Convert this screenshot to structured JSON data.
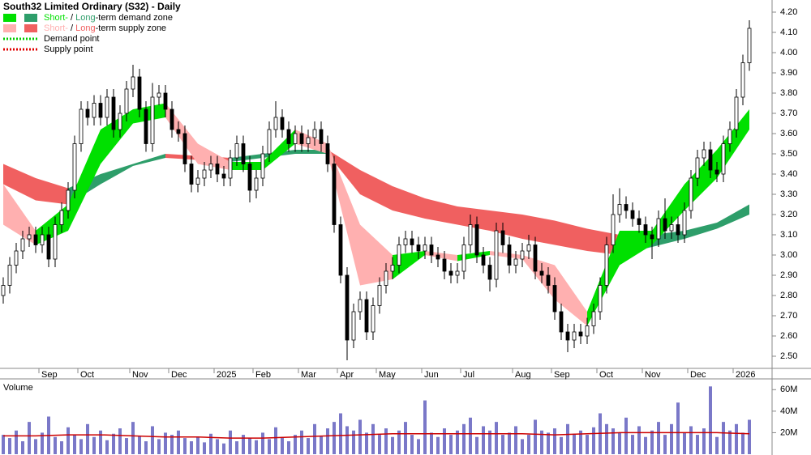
{
  "chart_data": {
    "type": "candlestick",
    "title": "South32 Limited Ordinary (S32) - Daily",
    "legend": [
      {
        "parts": [
          "Short-",
          " / ",
          "Long",
          "-term demand zone"
        ],
        "colors": [
          "#00e000",
          "#2e9e6a"
        ]
      },
      {
        "parts": [
          "Short-",
          " / ",
          "Long",
          "-term supply zone"
        ],
        "colors": [
          "#ffb0b0",
          "#f06060"
        ]
      },
      {
        "parts": [
          "Demand point"
        ],
        "colors": [
          "#00cc00"
        ]
      },
      {
        "parts": [
          "Supply point"
        ],
        "colors": [
          "#e00000"
        ]
      }
    ],
    "categories": [
      null,
      null,
      null,
      null,
      null,
      null,
      "Sep",
      null,
      null,
      null,
      null,
      null,
      "Oct",
      null,
      null,
      null,
      null,
      null,
      null,
      null,
      "Nov",
      null,
      null,
      null,
      null,
      null,
      "Dec",
      null,
      null,
      null,
      null,
      null,
      null,
      "2025",
      null,
      null,
      null,
      null,
      null,
      "Feb",
      null,
      null,
      null,
      null,
      null,
      null,
      "Mar",
      null,
      null,
      null,
      null,
      null,
      "Apr",
      null,
      null,
      null,
      null,
      null,
      "May",
      null,
      null,
      null,
      null,
      null,
      null,
      "Jun",
      null,
      null,
      null,
      null,
      null,
      "Jul",
      null,
      null,
      null,
      null,
      null,
      null,
      null,
      "Aug",
      null,
      null,
      null,
      null,
      null,
      "Sep",
      null,
      null,
      null,
      null,
      null,
      null,
      "Oct",
      null,
      null,
      null,
      null,
      null,
      null,
      "Nov",
      null,
      null,
      null,
      null,
      null,
      null,
      "Dec",
      null,
      null,
      null,
      null,
      null,
      null,
      "2026",
      null,
      null
    ],
    "open": [
      2.8,
      2.85,
      2.95,
      3.02,
      3.08,
      3.1,
      3.05,
      3.1,
      2.98,
      3.15,
      3.22,
      3.32,
      3.55,
      3.72,
      3.68,
      3.75,
      3.68,
      3.78,
      3.62,
      3.7,
      3.82,
      3.88,
      3.72,
      3.55,
      3.78,
      3.8,
      3.72,
      3.62,
      3.6,
      3.45,
      3.35,
      3.38,
      3.42,
      3.45,
      3.4,
      3.38,
      3.48,
      3.55,
      3.45,
      3.32,
      3.38,
      3.5,
      3.62,
      3.68,
      3.62,
      3.55,
      3.6,
      3.55,
      3.58,
      3.62,
      3.55,
      3.45,
      3.15,
      2.9,
      2.58,
      2.72,
      2.78,
      2.62,
      2.75,
      2.85,
      2.92,
      2.95,
      3.05,
      3.08,
      3.05,
      3.02,
      3.05,
      3.0,
      2.98,
      2.92,
      2.9,
      2.92,
      3.05,
      3.15,
      3.0,
      2.95,
      2.88,
      3.12,
      3.05,
      2.95,
      2.98,
      3.02,
      3.05,
      2.92,
      2.9,
      2.85,
      2.72,
      2.62,
      2.58,
      2.62,
      2.6,
      2.65,
      2.72,
      2.85,
      3.05,
      3.2,
      3.25,
      3.22,
      3.18,
      3.15,
      3.1,
      3.08,
      3.18,
      3.12,
      3.15,
      3.1,
      3.22,
      3.38,
      3.48,
      3.52,
      3.42,
      3.4,
      3.55,
      3.62,
      3.78,
      3.95
    ],
    "high": [
      2.89,
      2.99,
      3.06,
      3.12,
      3.14,
      3.14,
      3.14,
      3.14,
      3.19,
      3.26,
      3.36,
      3.59,
      3.76,
      3.76,
      3.79,
      3.79,
      3.82,
      3.82,
      3.74,
      3.86,
      3.94,
      3.92,
      3.76,
      3.85,
      3.84,
      3.84,
      3.76,
      3.66,
      3.64,
      3.49,
      3.42,
      3.46,
      3.49,
      3.49,
      3.44,
      3.52,
      3.59,
      3.59,
      3.49,
      3.42,
      3.54,
      3.66,
      3.76,
      3.72,
      3.66,
      3.64,
      3.64,
      3.62,
      3.66,
      3.66,
      3.59,
      3.49,
      3.19,
      2.94,
      2.76,
      2.82,
      2.82,
      2.79,
      2.89,
      2.96,
      2.99,
      3.09,
      3.12,
      3.12,
      3.09,
      3.09,
      3.09,
      3.04,
      3.02,
      2.96,
      2.96,
      3.09,
      3.2,
      3.19,
      3.04,
      2.99,
      3.16,
      3.16,
      3.09,
      3.02,
      3.06,
      3.1,
      3.09,
      2.96,
      2.94,
      2.89,
      2.76,
      2.66,
      2.66,
      2.66,
      2.69,
      2.76,
      2.89,
      3.09,
      3.3,
      3.33,
      3.29,
      3.26,
      3.22,
      3.19,
      3.14,
      3.22,
      3.28,
      3.19,
      3.19,
      3.26,
      3.42,
      3.52,
      3.56,
      3.56,
      3.46,
      3.59,
      3.66,
      3.82,
      3.99,
      4.16
    ],
    "low": [
      2.76,
      2.81,
      2.91,
      2.98,
      3.04,
      3.01,
      3.01,
      2.94,
      2.94,
      3.11,
      3.18,
      3.28,
      3.51,
      3.64,
      3.64,
      3.64,
      3.64,
      3.58,
      3.58,
      3.66,
      3.78,
      3.68,
      3.51,
      3.51,
      3.74,
      3.68,
      3.58,
      3.56,
      3.41,
      3.31,
      3.31,
      3.34,
      3.38,
      3.36,
      3.34,
      3.34,
      3.44,
      3.41,
      3.26,
      3.28,
      3.34,
      3.46,
      3.58,
      3.58,
      3.51,
      3.51,
      3.51,
      3.51,
      3.54,
      3.51,
      3.41,
      3.11,
      2.86,
      2.48,
      2.54,
      2.68,
      2.58,
      2.58,
      2.71,
      2.81,
      2.88,
      2.91,
      3.01,
      3.01,
      2.98,
      2.98,
      2.96,
      2.94,
      2.88,
      2.86,
      2.86,
      2.88,
      3.01,
      2.96,
      2.91,
      2.82,
      2.84,
      3.01,
      2.91,
      2.91,
      2.94,
      2.98,
      2.88,
      2.86,
      2.81,
      2.68,
      2.58,
      2.52,
      2.54,
      2.56,
      2.56,
      2.61,
      2.68,
      2.81,
      3.01,
      3.16,
      3.18,
      3.14,
      3.11,
      3.06,
      2.98,
      3.04,
      3.08,
      3.08,
      3.06,
      3.06,
      3.18,
      3.34,
      3.44,
      3.38,
      3.36,
      3.36,
      3.51,
      3.58,
      3.74,
      3.91
    ],
    "close": [
      2.85,
      2.95,
      3.02,
      3.08,
      3.1,
      3.05,
      3.1,
      2.98,
      3.15,
      3.22,
      3.32,
      3.55,
      3.72,
      3.68,
      3.75,
      3.68,
      3.78,
      3.62,
      3.7,
      3.82,
      3.88,
      3.72,
      3.55,
      3.78,
      3.8,
      3.72,
      3.62,
      3.6,
      3.45,
      3.35,
      3.38,
      3.42,
      3.45,
      3.4,
      3.38,
      3.48,
      3.55,
      3.45,
      3.32,
      3.38,
      3.5,
      3.62,
      3.68,
      3.62,
      3.55,
      3.6,
      3.55,
      3.58,
      3.62,
      3.55,
      3.45,
      3.15,
      2.9,
      2.58,
      2.72,
      2.78,
      2.62,
      2.75,
      2.85,
      2.92,
      2.95,
      3.05,
      3.08,
      3.05,
      3.02,
      3.05,
      3.0,
      2.98,
      2.92,
      2.9,
      2.92,
      3.05,
      3.15,
      3.0,
      2.95,
      2.88,
      3.12,
      3.05,
      2.95,
      2.98,
      3.02,
      3.05,
      2.92,
      2.9,
      2.85,
      2.72,
      2.62,
      2.58,
      2.62,
      2.6,
      2.65,
      2.72,
      2.85,
      3.05,
      3.2,
      3.25,
      3.22,
      3.18,
      3.15,
      3.1,
      3.08,
      3.18,
      3.12,
      3.15,
      3.1,
      3.22,
      3.38,
      3.48,
      3.52,
      3.42,
      3.4,
      3.55,
      3.62,
      3.78,
      3.95,
      4.12
    ],
    "zones": [
      {
        "lower": [
          3.35,
          3.27,
          3.25,
          3.35,
          3.44,
          3.48,
          3.47,
          3.46,
          3.48,
          3.5,
          3.5,
          3.3,
          3.22,
          3.18,
          3.15,
          3.12,
          3.08,
          3.05,
          3.02,
          3.0,
          3.04,
          3.08,
          3.13,
          3.2
        ],
        "upper": [
          3.45,
          3.38,
          3.33,
          3.4,
          3.45,
          3.5,
          3.49,
          3.48,
          3.5,
          3.52,
          3.52,
          3.42,
          3.34,
          3.28,
          3.24,
          3.22,
          3.2,
          3.17,
          3.13,
          3.1,
          3.1,
          3.12,
          3.16,
          3.25
        ],
        "colors": [
          "#2e9e6a",
          "#f06060"
        ]
      },
      {
        "lower": [
          3.15,
          3.05,
          3.12,
          3.45,
          3.65,
          3.68,
          3.45,
          3.42,
          3.42,
          3.55,
          3.5,
          2.85,
          2.88,
          3.0,
          2.97,
          3.0,
          2.98,
          2.78,
          2.65,
          2.95,
          3.05,
          3.22,
          3.38,
          3.62
        ],
        "upper": [
          3.35,
          3.12,
          3.25,
          3.62,
          3.72,
          3.75,
          3.55,
          3.46,
          3.46,
          3.62,
          3.55,
          3.15,
          3.0,
          3.02,
          3.0,
          3.02,
          3.0,
          2.95,
          2.72,
          3.12,
          3.12,
          3.35,
          3.52,
          3.72
        ],
        "colors": [
          "#00e000",
          "#ffb0b0"
        ]
      }
    ],
    "ylim": [
      2.44,
      4.26
    ],
    "yticks": [
      {
        "value": 2.5,
        "label": "2.50"
      },
      {
        "value": 2.6,
        "label": "2.60"
      },
      {
        "value": 2.7,
        "label": "2.70"
      },
      {
        "value": 2.8,
        "label": "2.80"
      },
      {
        "value": 2.9,
        "label": "2.90"
      },
      {
        "value": 3.0,
        "label": "3.00"
      },
      {
        "value": 3.1,
        "label": "3.10"
      },
      {
        "value": 3.2,
        "label": "3.20"
      },
      {
        "value": 3.3,
        "label": "3.30"
      },
      {
        "value": 3.4,
        "label": "3.40"
      },
      {
        "value": 3.5,
        "label": "3.50"
      },
      {
        "value": 3.6,
        "label": "3.60"
      },
      {
        "value": 3.7,
        "label": "3.70"
      },
      {
        "value": 3.8,
        "label": "3.80"
      },
      {
        "value": 3.9,
        "label": "3.90"
      },
      {
        "value": 4.0,
        "label": "4.00"
      },
      {
        "value": 4.1,
        "label": "4.10"
      },
      {
        "value": 4.2,
        "label": "4.20"
      }
    ],
    "volume": {
      "title": "Volume",
      "color": "#7a78c8",
      "values": [
        18,
        15,
        22,
        12,
        30,
        14,
        20,
        35,
        16,
        12,
        25,
        18,
        14,
        28,
        16,
        22,
        13,
        19,
        24,
        15,
        30,
        17,
        12,
        26,
        14,
        20,
        18,
        22,
        15,
        12,
        16,
        11,
        19,
        14,
        10,
        22,
        12,
        18,
        15,
        13,
        20,
        14,
        25,
        16,
        12,
        18,
        22,
        15,
        28,
        17,
        24,
        30,
        38,
        26,
        22,
        32,
        20,
        28,
        18,
        24,
        16,
        22,
        30,
        18,
        14,
        50,
        20,
        16,
        24,
        18,
        22,
        28,
        34,
        16,
        26,
        22,
        30,
        18,
        20,
        26,
        14,
        18,
        32,
        22,
        20,
        24,
        16,
        28,
        19,
        22,
        18,
        25,
        38,
        28,
        24,
        20,
        34,
        18,
        26,
        16,
        22,
        30,
        18,
        28,
        48,
        20,
        26,
        18,
        24,
        63,
        16,
        30,
        22,
        28,
        20,
        32
      ],
      "average": [
        17,
        17,
        18,
        18,
        17,
        16,
        16,
        15,
        15,
        16,
        17,
        18,
        19,
        19,
        19,
        19,
        19,
        18,
        19,
        20,
        20,
        20,
        20,
        19
      ],
      "average_color": "#cc0000",
      "ylim": [
        0,
        70
      ],
      "yticks": [
        {
          "value": 20,
          "label": "20M"
        },
        {
          "value": 40,
          "label": "40M"
        },
        {
          "value": 60,
          "label": "60M"
        }
      ]
    }
  }
}
